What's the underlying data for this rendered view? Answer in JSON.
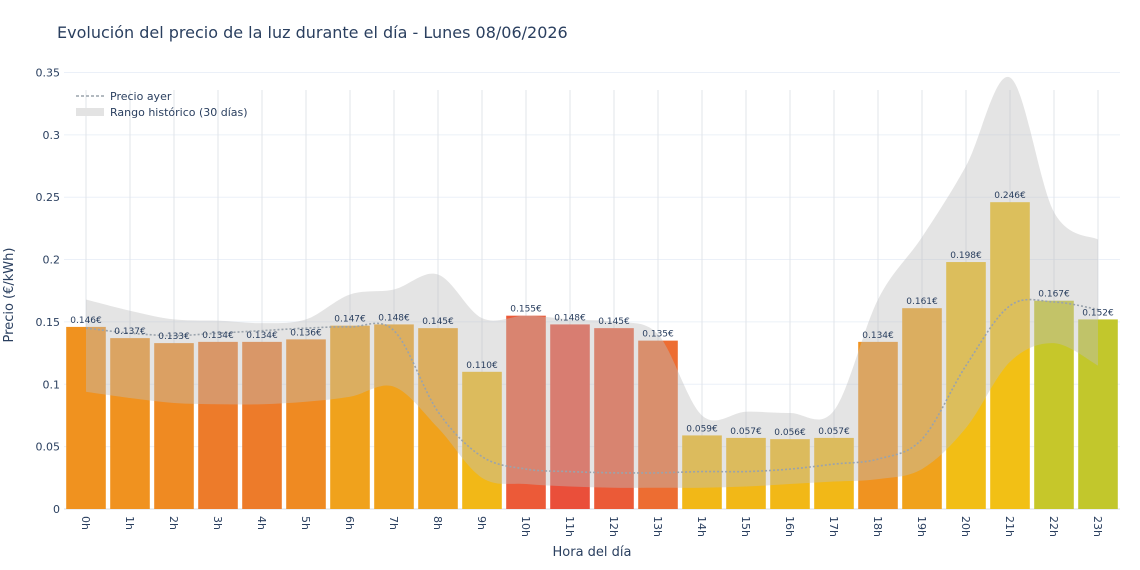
{
  "chart_data": {
    "type": "bar",
    "title": "Evolución del precio de la luz durante el día - Lunes 08/06/2026",
    "xlabel": "Hora del día",
    "ylabel": "Precio (€/kWh)",
    "ylim": [
      0,
      0.36
    ],
    "yticks": [
      0,
      0.05,
      0.1,
      0.15,
      0.2,
      0.25,
      0.3,
      0.35
    ],
    "ytick_labels": [
      "0",
      "0.05",
      "0.1",
      "0.15",
      "0.2",
      "0.25",
      "0.3",
      "0.35"
    ],
    "categories": [
      "0h",
      "1h",
      "2h",
      "3h",
      "4h",
      "5h",
      "6h",
      "7h",
      "8h",
      "9h",
      "10h",
      "11h",
      "12h",
      "13h",
      "14h",
      "15h",
      "16h",
      "17h",
      "18h",
      "19h",
      "20h",
      "21h",
      "22h",
      "23h"
    ],
    "values": [
      0.146,
      0.137,
      0.133,
      0.134,
      0.134,
      0.136,
      0.147,
      0.148,
      0.145,
      0.11,
      0.155,
      0.148,
      0.145,
      0.135,
      0.059,
      0.057,
      0.056,
      0.057,
      0.134,
      0.161,
      0.198,
      0.246,
      0.167,
      0.152
    ],
    "labels": [
      "0.146€",
      "0.137€",
      "0.133€",
      "0.134€",
      "0.134€",
      "0.136€",
      "0.147€",
      "0.148€",
      "0.145€",
      "0.110€",
      "0.155€",
      "0.148€",
      "0.145€",
      "0.135€",
      "0.059€",
      "0.057€",
      "0.056€",
      "0.057€",
      "0.134€",
      "0.161€",
      "0.198€",
      "0.246€",
      "0.167€",
      "0.152€"
    ],
    "bar_colors": [
      "#f0921f",
      "#f0921f",
      "#ef8a22",
      "#ed7b2a",
      "#ed7b2a",
      "#ef8a22",
      "#f0a21c",
      "#f0a21c",
      "#f0a21c",
      "#f2b817",
      "#ec5a38",
      "#ea4f3a",
      "#eb5a37",
      "#ed6d32",
      "#f2b817",
      "#f2b817",
      "#f2b817",
      "#f2b817",
      "#f09320",
      "#f0a21c",
      "#f2be15",
      "#f2c015",
      "#c6c72a",
      "#c2c72c"
    ],
    "yesterday": {
      "name": "Precio ayer",
      "values": [
        0.145,
        0.141,
        0.139,
        0.141,
        0.143,
        0.145,
        0.146,
        0.143,
        0.078,
        0.042,
        0.032,
        0.03,
        0.029,
        0.029,
        0.03,
        0.03,
        0.032,
        0.036,
        0.04,
        0.056,
        0.115,
        0.163,
        0.166,
        0.16
      ]
    },
    "historic_range": {
      "name": "Rango histórico (30 días)",
      "upper": [
        0.168,
        0.159,
        0.152,
        0.151,
        0.149,
        0.152,
        0.172,
        0.176,
        0.188,
        0.153,
        0.155,
        0.152,
        0.15,
        0.14,
        0.075,
        0.078,
        0.077,
        0.079,
        0.168,
        0.218,
        0.275,
        0.346,
        0.238,
        0.216
      ],
      "lower": [
        0.094,
        0.089,
        0.085,
        0.084,
        0.084,
        0.086,
        0.09,
        0.098,
        0.065,
        0.025,
        0.02,
        0.018,
        0.017,
        0.017,
        0.017,
        0.018,
        0.02,
        0.022,
        0.024,
        0.032,
        0.065,
        0.118,
        0.133,
        0.115
      ]
    },
    "legend_position": "top-left",
    "grid": true
  }
}
